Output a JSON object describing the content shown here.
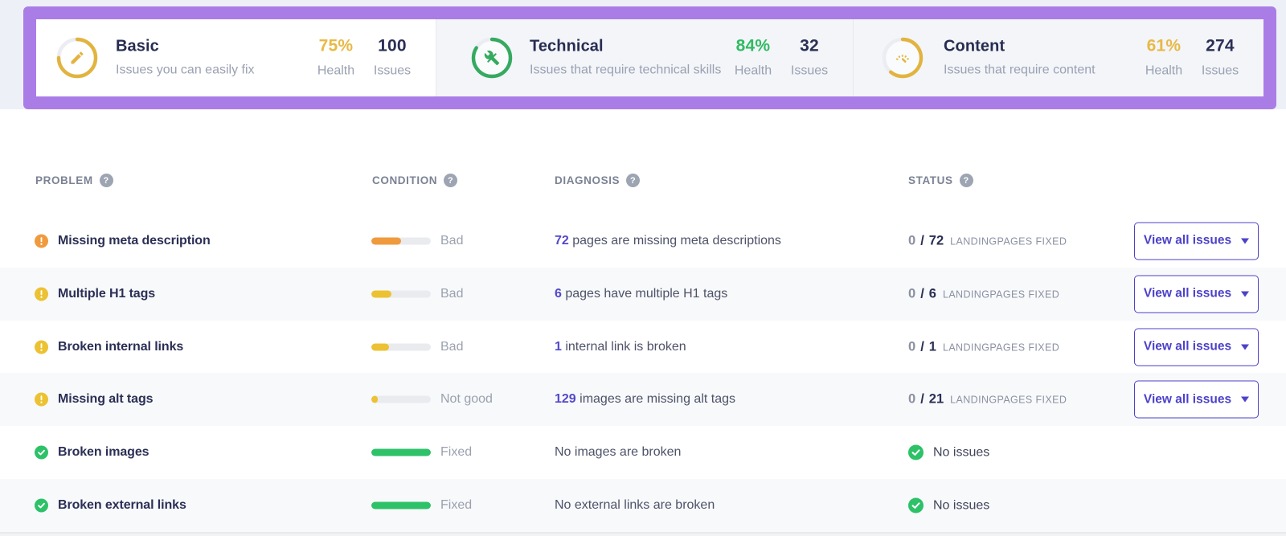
{
  "colors": {
    "annotation_highlight": "#aa7de6",
    "page_background": "#eef0f7",
    "accent_purple": "#5348c9",
    "button_purple": "#4c41c8",
    "amber": "#e2b43f",
    "orange": "#f09a3e",
    "yellow": "#ecc232",
    "green": "#2dc168",
    "dark_navy": "#2b2f55"
  },
  "summary": {
    "cards": [
      {
        "id": "basic",
        "icon": "pencil-icon",
        "title": "Basic",
        "subtitle": "Issues you can easily fix",
        "health_value": "75%",
        "health_percent": 75,
        "health_label": "Health",
        "issues_value": "100",
        "issues_label": "Issues"
      },
      {
        "id": "technical",
        "icon": "tools-icon",
        "title": "Technical",
        "subtitle": "Issues that require technical skills",
        "health_value": "84%",
        "health_percent": 84,
        "health_label": "Health",
        "issues_value": "32",
        "issues_label": "Issues"
      },
      {
        "id": "content",
        "icon": "gauge-icon",
        "title": "Content",
        "subtitle": "Issues that require content",
        "health_value": "61%",
        "health_percent": 61,
        "health_label": "Health",
        "issues_value": "274",
        "issues_label": "Issues"
      }
    ]
  },
  "table": {
    "help_symbol": "?",
    "columns": [
      {
        "label": "PROBLEM"
      },
      {
        "label": "CONDITION"
      },
      {
        "label": "DIAGNOSIS"
      },
      {
        "label": "STATUS"
      }
    ],
    "rows": [
      {
        "problem": "Missing meta description",
        "severity": "orange",
        "progress": 50,
        "condition": "Bad",
        "diagnosis_number": "72",
        "diagnosis_text": " pages are missing meta descriptions",
        "status_fixed": "0",
        "status_slash": "/",
        "status_total": "72",
        "status_label": "LANDINGPAGES FIXED",
        "action": "View all issues"
      },
      {
        "problem": "Multiple H1 tags",
        "severity": "yellow",
        "progress": 34,
        "condition": "Bad",
        "diagnosis_number": "6",
        "diagnosis_text": " pages have multiple H1 tags",
        "status_fixed": "0",
        "status_slash": "/",
        "status_total": "6",
        "status_label": "LANDINGPAGES FIXED",
        "action": "View all issues"
      },
      {
        "problem": "Broken internal links",
        "severity": "yellow",
        "progress": 30,
        "condition": "Bad",
        "diagnosis_number": "1",
        "diagnosis_text": " internal link is broken",
        "status_fixed": "0",
        "status_slash": "/",
        "status_total": "1",
        "status_label": "LANDINGPAGES FIXED",
        "action": "View all issues"
      },
      {
        "problem": "Missing alt tags",
        "severity": "yellow",
        "progress": 11,
        "condition": "Not good",
        "diagnosis_number": "129",
        "diagnosis_text": " images are missing alt tags",
        "status_fixed": "0",
        "status_slash": "/",
        "status_total": "21",
        "status_label": "LANDINGPAGES FIXED",
        "action": "View all issues"
      },
      {
        "problem": "Broken images",
        "severity": "green",
        "progress": 100,
        "condition": "Fixed",
        "diagnosis_number": "",
        "diagnosis_text": "No images are broken",
        "status_ok": "No issues"
      },
      {
        "problem": "Broken external links",
        "severity": "green",
        "progress": 100,
        "condition": "Fixed",
        "diagnosis_number": "",
        "diagnosis_text": "No external links are broken",
        "status_ok": "No issues"
      }
    ]
  }
}
